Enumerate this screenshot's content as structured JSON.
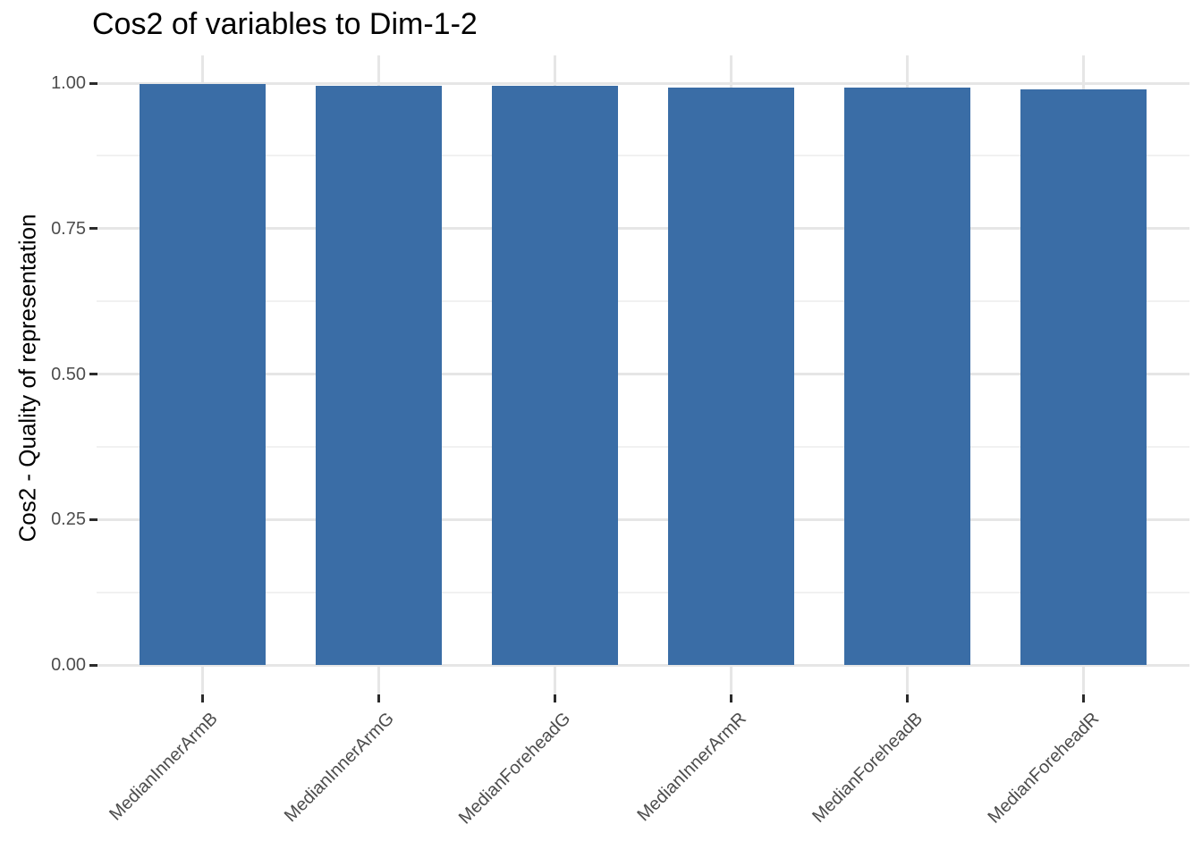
{
  "chart_data": {
    "type": "bar",
    "title": "Cos2 of variables to Dim-1-2",
    "xlabel": "",
    "ylabel": "Cos2 - Quality of representation",
    "categories": [
      "MedianInnerArmB",
      "MedianInnerArmG",
      "MedianForeheadG",
      "MedianInnerArmR",
      "MedianForeheadB",
      "MedianForeheadR"
    ],
    "values": [
      0.999,
      0.996,
      0.996,
      0.993,
      0.993,
      0.99
    ],
    "ylim": [
      0,
      1
    ],
    "yticks": [
      0,
      0.25,
      0.5,
      0.75,
      1
    ],
    "ytick_labels": [
      "0.00",
      "0.25",
      "0.50",
      "0.75",
      "1.00"
    ],
    "yticks_minor": [
      0.125,
      0.375,
      0.625,
      0.875
    ],
    "grid": "horizontal major+minor, vertical major at category centers",
    "legend": "none",
    "colors": {
      "bar_fill": "#3A6DA6",
      "grid_major": "#E6E6E6",
      "grid_minor": "#F1F1F1",
      "axis_tick": "#2B2B2B",
      "tick_label": "#4D4D4D",
      "title_text": "#000000",
      "background": "#FFFFFF"
    }
  }
}
